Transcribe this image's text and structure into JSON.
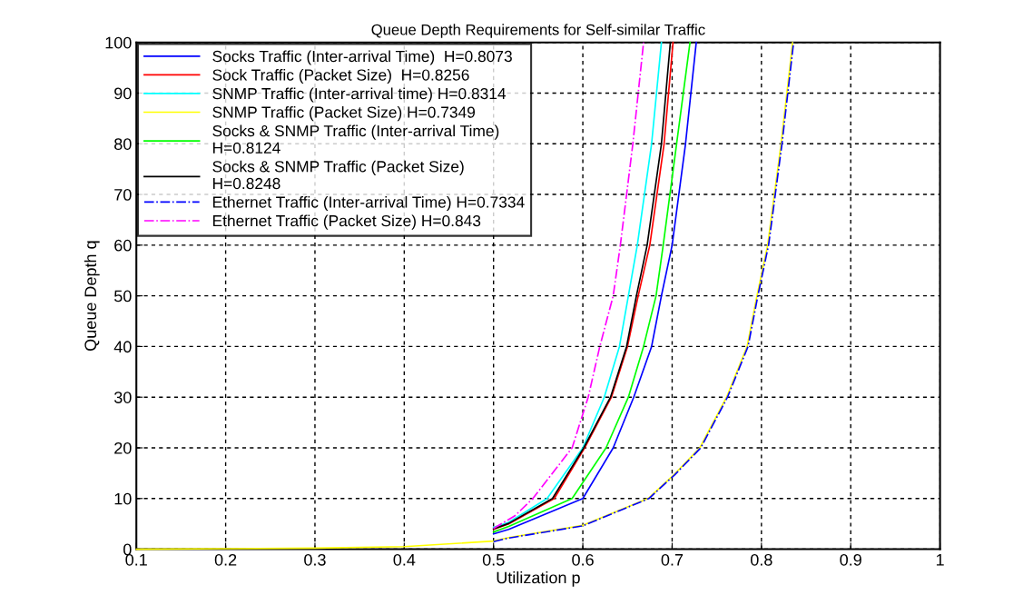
{
  "chart_data": {
    "type": "line",
    "title": "Queue Depth Requirements for Self-similar Traffic",
    "xlabel": "Utilization p",
    "ylabel": "Queue Depth q",
    "xlim": [
      0.1,
      1
    ],
    "ylim": [
      0,
      100
    ],
    "xticks": [
      0.1,
      0.2,
      0.3,
      0.4,
      0.5,
      0.6,
      0.7,
      0.8,
      0.9,
      1
    ],
    "yticks": [
      0,
      10,
      20,
      30,
      40,
      50,
      60,
      70,
      80,
      90,
      100
    ],
    "grid": true,
    "legend": "top left",
    "series": [
      {
        "name": "Socks Traffic (Inter-arrival Time)  H=0.8073",
        "color": "#0000ff",
        "line_style": "solid",
        "x": [
          0.5,
          0.517,
          0.6,
          0.634,
          0.657,
          0.677,
          0.688,
          0.7,
          0.715,
          0.727
        ],
        "values": [
          3,
          3.9,
          10,
          20,
          30,
          40,
          50,
          60,
          80,
          100
        ]
      },
      {
        "name": "Sock Traffic (Packet Size)  H=0.8256",
        "color": "#ff0000",
        "line_style": "solid",
        "x": [
          0.5,
          0.517,
          0.568,
          0.602,
          0.632,
          0.65,
          0.662,
          0.675,
          0.691,
          0.701
        ],
        "values": [
          3.9,
          5,
          10,
          20,
          30,
          40,
          50,
          60,
          80,
          100
        ]
      },
      {
        "name": "SNMP Traffic (Inter-arrival time) H=0.8314",
        "color": "#00ffff",
        "line_style": "solid",
        "x": [
          0.5,
          0.517,
          0.56,
          0.6,
          0.624,
          0.641,
          0.651,
          0.661,
          0.677,
          0.688
        ],
        "values": [
          4.3,
          5.3,
          10,
          20,
          30,
          40,
          50,
          60,
          80,
          100
        ]
      },
      {
        "name": "SNMP Traffic (Packet Size) H=0.7349",
        "color": "#ffff00",
        "line_style": "solid",
        "x": [
          0.1,
          0.2,
          0.3,
          0.4,
          0.5,
          0.517,
          0.6,
          0.673,
          0.702,
          0.731,
          0.761,
          0.784,
          0.795,
          0.807,
          0.822,
          0.835
        ],
        "values": [
          0,
          0.1,
          0.2,
          0.5,
          1.6,
          2.3,
          4.7,
          10,
          14.7,
          20,
          30,
          40,
          50,
          60,
          80,
          100
        ]
      },
      {
        "name": "Socks & SNMP Traffic (Inter-arrival Time)\nH=0.8124",
        "color": "#00ff00",
        "line_style": "solid",
        "x": [
          0.5,
          0.517,
          0.588,
          0.626,
          0.651,
          0.668,
          0.682,
          0.69,
          0.705,
          0.72
        ],
        "values": [
          3.4,
          4.5,
          10,
          20,
          30,
          40,
          50,
          60,
          80,
          100
        ]
      },
      {
        "name": "Socks & SNMP Traffic (Packet Size)\nH=0.8248",
        "color": "#000000",
        "line_style": "solid",
        "x": [
          0.5,
          0.517,
          0.566,
          0.601,
          0.631,
          0.649,
          0.66,
          0.672,
          0.688,
          0.698
        ],
        "values": [
          4,
          5.1,
          10,
          20,
          30,
          40,
          50,
          60,
          80,
          100
        ]
      },
      {
        "name": "Ethernet Traffic (Inter-arrival Time) H=0.7334",
        "color": "#0000ff",
        "line_style": "dashdot",
        "x": [
          0.5,
          0.517,
          0.6,
          0.674,
          0.703,
          0.732,
          0.762,
          0.785,
          0.796,
          0.808,
          0.823,
          0.836
        ],
        "values": [
          1.5,
          2.2,
          4.6,
          10,
          14.7,
          20,
          30,
          40,
          50,
          60,
          80,
          100
        ]
      },
      {
        "name": "Ethernet Traffic (Packet Size) H=0.843",
        "color": "#ff00ff",
        "line_style": "dashdot",
        "x": [
          0.5,
          0.524,
          0.544,
          0.588,
          0.606,
          0.619,
          0.634,
          0.642,
          0.656,
          0.668
        ],
        "values": [
          4.1,
          6.6,
          10,
          20,
          30,
          40,
          50,
          60,
          80,
          100
        ]
      }
    ]
  }
}
